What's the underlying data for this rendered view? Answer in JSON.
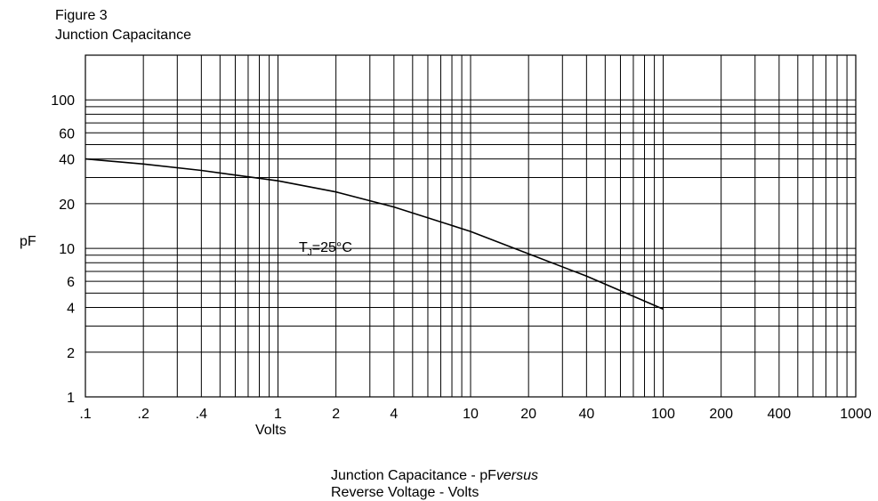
{
  "chart_data": {
    "type": "line",
    "title": "Figure 3",
    "subtitle": "Junction Capacitance",
    "xlabel": "Volts",
    "ylabel": "pF",
    "x_scale": "log",
    "y_scale": "log",
    "xlim": [
      0.1,
      1000
    ],
    "ylim": [
      1,
      200
    ],
    "grid": true,
    "x_tick_labels": [
      ".1",
      ".2",
      ".4",
      "1",
      "2",
      "4",
      "10",
      "20",
      "40",
      "100",
      "200",
      "400",
      "1000"
    ],
    "y_tick_labels": [
      "1",
      "2",
      "4",
      "6",
      "10",
      "20",
      "40",
      "60",
      "100"
    ],
    "annotation": {
      "text_main": "T",
      "text_sub": "J",
      "text_rest": "=25°C"
    },
    "caption_line1_main": "Junction Capacitance - pF",
    "caption_line1_italic": "versus",
    "caption_line2": "Reverse Voltage - Volts",
    "series": [
      {
        "x": [
          0.1,
          0.2,
          0.4,
          1,
          2,
          4,
          10,
          20,
          40,
          100
        ],
        "y": [
          40,
          37,
          33.5,
          28.5,
          24,
          19,
          13,
          9.2,
          6.5,
          3.9
        ]
      }
    ]
  }
}
